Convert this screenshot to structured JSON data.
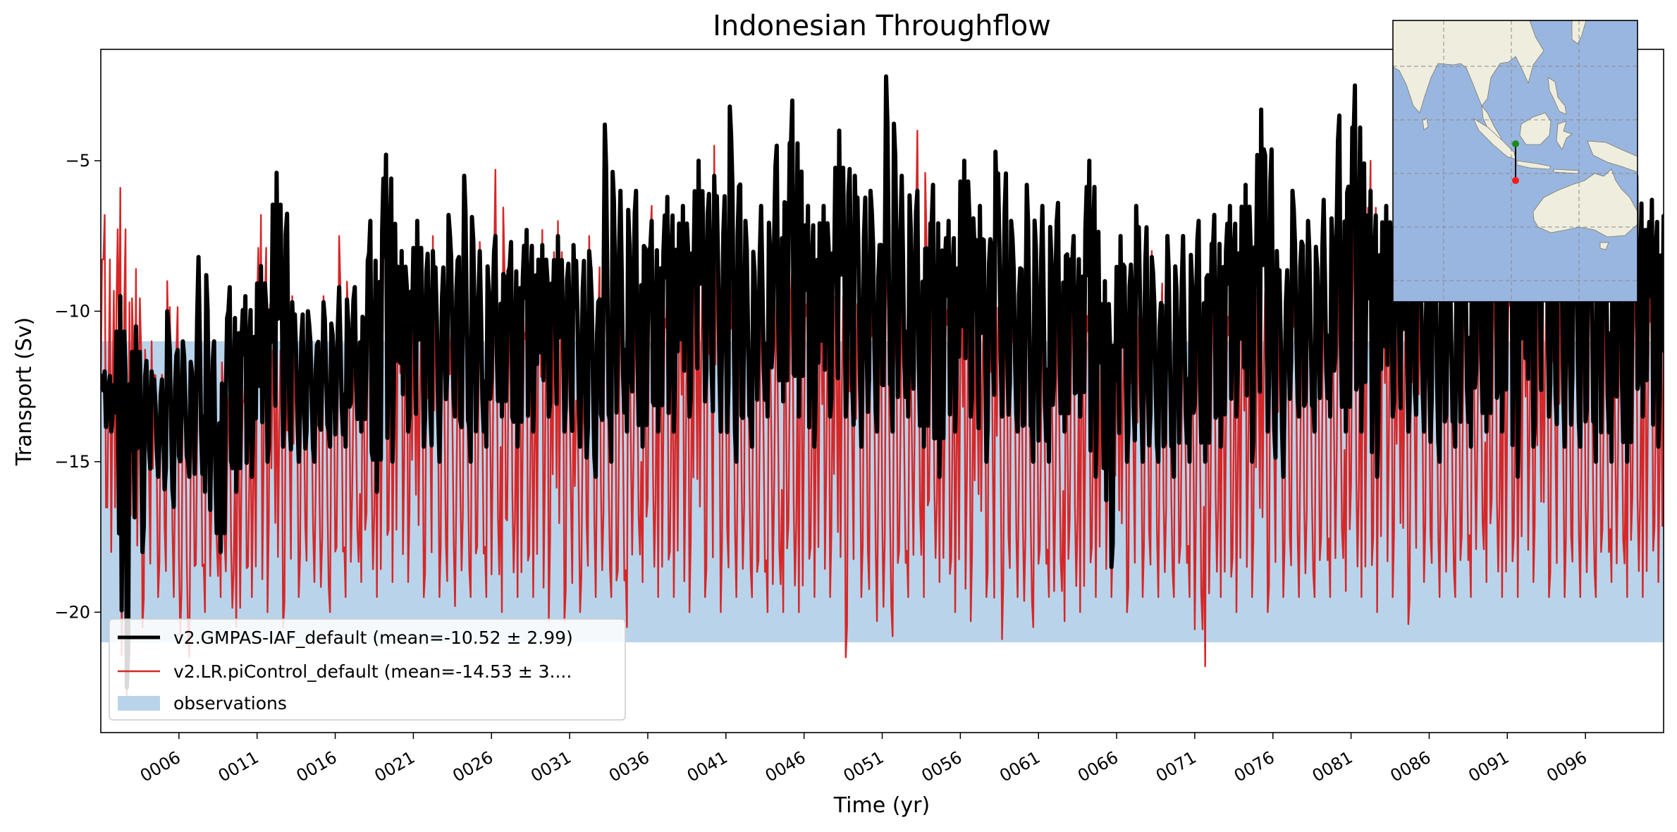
{
  "chart_data": {
    "type": "line",
    "title": "Indonesian Throughflow",
    "xlabel": "Time (yr)",
    "ylabel": "Transport (Sv)",
    "xlim": [
      1,
      101
    ],
    "ylim": [
      -24,
      -1.3
    ],
    "xticks": [
      6,
      11,
      16,
      21,
      26,
      31,
      36,
      41,
      46,
      51,
      56,
      61,
      66,
      71,
      76,
      81,
      86,
      91,
      96
    ],
    "xtick_labels": [
      "0006",
      "0011",
      "0016",
      "0021",
      "0026",
      "0031",
      "0036",
      "0041",
      "0046",
      "0051",
      "0056",
      "0061",
      "0066",
      "0071",
      "0076",
      "0081",
      "0086",
      "0091",
      "0096"
    ],
    "yticks": [
      -20,
      -15,
      -10,
      -5
    ],
    "ytick_labels": [
      "−20",
      "−15",
      "−10",
      "−5"
    ],
    "observations": {
      "name": "observations",
      "ymin": -21,
      "ymax": -11,
      "color": "#b9d4ea"
    },
    "series": [
      {
        "name": "v2.GMPAS-IAF_default",
        "legend_label": "v2.GMPAS-IAF_default (mean=-10.52 ± 2.99)",
        "color": "#000000",
        "mean": -10.52,
        "std": 2.99,
        "yearly_max": [
          -12,
          -9.5,
          -10.5,
          -12,
          -10,
          -11,
          -8.2,
          -11,
          -9.2,
          -9.5,
          -8.5,
          -5.4,
          -9.7,
          -10,
          -9.7,
          -9.2,
          -9.2,
          -7,
          -4.8,
          -8,
          -7,
          -8,
          -6.8,
          -5.5,
          -8,
          -7.5,
          -7.7,
          -7.3,
          -7.8,
          -7.5,
          -7.8,
          -8,
          -3.8,
          -6,
          -6,
          -7,
          -6.2,
          -6.5,
          -5,
          -5.5,
          -3.2,
          -7,
          -6.5,
          -4.5,
          -3,
          -6.5,
          -6.5,
          -4,
          -5.5,
          -6,
          -2.2,
          -5.5,
          -6,
          -5.8,
          -7,
          -5,
          -6.5,
          -4.7,
          -7,
          -5.8,
          -6.5,
          -6.4,
          -7.5,
          -5,
          -9,
          -7.5,
          -6.5,
          -8.2,
          -7.5,
          -7.5,
          -7,
          -6.8,
          -6.5,
          -5.8,
          -3.3,
          -8,
          -6,
          -7,
          -6.3,
          -3.5,
          -2.5,
          -6,
          -6.5,
          -7.5,
          -7.5,
          -6.5,
          -7.5,
          -5,
          -6,
          -4.5,
          -3.5,
          -5.5,
          -6,
          -6,
          -5,
          -3.5,
          -4,
          -6.5,
          -5.5,
          -6.3,
          -6.2
        ],
        "yearly_min": [
          -14,
          -22.5,
          -18,
          -15.5,
          -16.5,
          -15.5,
          -16,
          -18,
          -16,
          -15.5,
          -15,
          -14.5,
          -15,
          -15,
          -14.5,
          -14.5,
          -14,
          -16,
          -15,
          -14,
          -14.5,
          -15,
          -13.5,
          -15,
          -14.5,
          -13.5,
          -14.5,
          -14,
          -13.5,
          -14,
          -14.5,
          -15.5,
          -15,
          -14,
          -14.5,
          -14,
          -14,
          -13.5,
          -13,
          -14,
          -15,
          -14.5,
          -13.5,
          -13,
          -13.5,
          -14.5,
          -13.5,
          -13.5,
          -14.5,
          -14,
          -14,
          -13.5,
          -14.5,
          -15.5,
          -14,
          -13.5,
          -15,
          -13.5,
          -14,
          -15,
          -15,
          -14,
          -13.5,
          -15.5,
          -18.5,
          -15,
          -15,
          -15,
          -15.5,
          -15,
          -15,
          -14.5,
          -13.5,
          -15,
          -14,
          -15.5,
          -13.5,
          -14,
          -13.5,
          -14,
          -14,
          -15.5,
          -13.5,
          -14,
          -14,
          -15,
          -14.5,
          -14.5,
          -14,
          -14,
          -15.5,
          -14.5,
          -13.5,
          -14.5,
          -14.5,
          -15,
          -15,
          -15,
          -13.5,
          -14.5,
          -14.5
        ]
      },
      {
        "name": "v2.LR.piControl_default",
        "legend_label": "v2.LR.piControl_default (mean=-14.53 ± 3....",
        "color": "#d62728",
        "mean": -14.53,
        "yearly_max": [
          -6.8,
          -5.9,
          -8.6,
          -11,
          -9,
          -12,
          -8.2,
          -11,
          -12.5,
          -12,
          -6.8,
          -10.5,
          -9.5,
          -10.5,
          -9.5,
          -7.5,
          -11,
          -7.8,
          -6.5,
          -8,
          -9.5,
          -7.5,
          -10,
          -8.2,
          -7.7,
          -5.3,
          -9,
          -9.5,
          -7.3,
          -7,
          -12,
          -7.5,
          -8,
          -7.5,
          -8.5,
          -6.5,
          -9,
          -8.3,
          -7.5,
          -4.5,
          -8.3,
          -7.3,
          -8.5,
          -9.5,
          -8.5,
          -8.5,
          -9,
          -8.5,
          -8.5,
          -8.5,
          -8,
          -9.5,
          -4,
          -8.5,
          -8.7,
          -8.5,
          -8.6,
          -8.5,
          -9,
          -9,
          -9.5,
          -9.5,
          -8.5,
          -9,
          -9.5,
          -9,
          -9,
          -8,
          -8.5,
          -9,
          -8.8,
          -8.3,
          -9,
          -9,
          -8.5,
          -8.5,
          -8.5,
          -9,
          -7.8,
          -8,
          -6,
          -5,
          -7.3,
          -9,
          -8,
          -8,
          -8.3,
          -7.5,
          -8,
          -8.2,
          -7.8,
          -8.3,
          -8.5,
          -8.3,
          -7.8,
          -8.5,
          -9,
          -8.5,
          -8,
          -8.5,
          -8.5
        ],
        "yearly_min": [
          -18,
          -22.8,
          -20.5,
          -19.5,
          -19.5,
          -21.5,
          -20,
          -19.5,
          -20.5,
          -19.5,
          -20,
          -20.5,
          -19.5,
          -19,
          -20,
          -19.5,
          -19,
          -19.5,
          -19,
          -19,
          -19.5,
          -19.5,
          -19.8,
          -19.5,
          -19.5,
          -20,
          -19.5,
          -19.5,
          -20.3,
          -20.3,
          -20,
          -19.5,
          -19.5,
          -20.5,
          -19,
          -19.5,
          -19.5,
          -20,
          -19.5,
          -20,
          -19.5,
          -19.5,
          -20,
          -20,
          -20,
          -19.5,
          -19.5,
          -21.5,
          -19.5,
          -20.3,
          -20.8,
          -19.5,
          -19.5,
          -19,
          -20,
          -20.3,
          -19.5,
          -20.9,
          -19.5,
          -20.5,
          -19.5,
          -20.3,
          -20,
          -19.5,
          -19.5,
          -20,
          -19.5,
          -19.5,
          -19.5,
          -19.5,
          -21.8,
          -19.5,
          -20,
          -19.5,
          -20,
          -19.5,
          -19.5,
          -19.5,
          -19.5,
          -19.3,
          -19.5,
          -20,
          -19.5,
          -20.4,
          -19,
          -19.5,
          -19.5,
          -19.5,
          -19,
          -19.5,
          -19.5,
          -19,
          -19.5,
          -19.5,
          -19.5,
          -19.5,
          -19,
          -19.5,
          -19.5,
          -19,
          -19.5
        ]
      }
    ],
    "legend": {
      "position": "lower-left"
    },
    "inset_map": {
      "description_type": "map",
      "land_color": "#efedde",
      "ocean_color": "#99b6e0",
      "section_start_color": "#1a8a1a",
      "section_end_color": "#ff1a1a"
    }
  }
}
